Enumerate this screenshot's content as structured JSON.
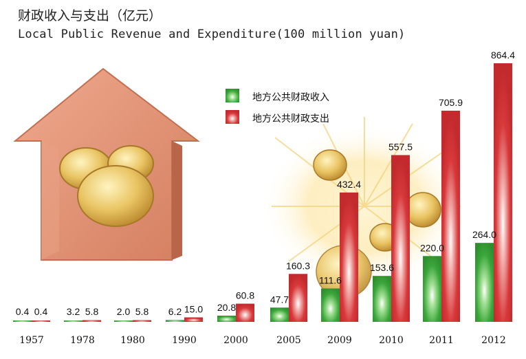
{
  "title_cn": "财政收入与支出（亿元）",
  "title_en": "Local Public Revenue and Expenditure(100 million yuan)",
  "colors": {
    "revenue": "#3aa63a",
    "expenditure": "#d8393b"
  },
  "chart_data": {
    "type": "bar",
    "categories": [
      "1957",
      "1978",
      "1980",
      "1990",
      "2000",
      "2005",
      "2009",
      "2010",
      "2011",
      "2012"
    ],
    "series": [
      {
        "name": "地方公共财政收入",
        "values": [
          0.4,
          3.2,
          2.0,
          6.2,
          20.8,
          47.7,
          111.6,
          153.6,
          220.0,
          264.0
        ]
      },
      {
        "name": "地方公共财政支出",
        "values": [
          0.4,
          5.8,
          5.8,
          15.0,
          60.8,
          160.3,
          432.4,
          557.5,
          705.9,
          864.4
        ]
      }
    ],
    "labels": [
      [
        "0.4",
        "3.2",
        "2.0",
        "6.2",
        "20.8",
        "47.7",
        "111.6",
        "153.6",
        "220.0",
        "264.0"
      ],
      [
        "0.4",
        "5.8",
        "5.8",
        "15.0",
        "60.8",
        "160.3",
        "432.4",
        "557.5",
        "705.9",
        "864.4"
      ]
    ],
    "ylim": [
      0,
      900
    ],
    "legend_position": "top-center",
    "grid": false
  }
}
